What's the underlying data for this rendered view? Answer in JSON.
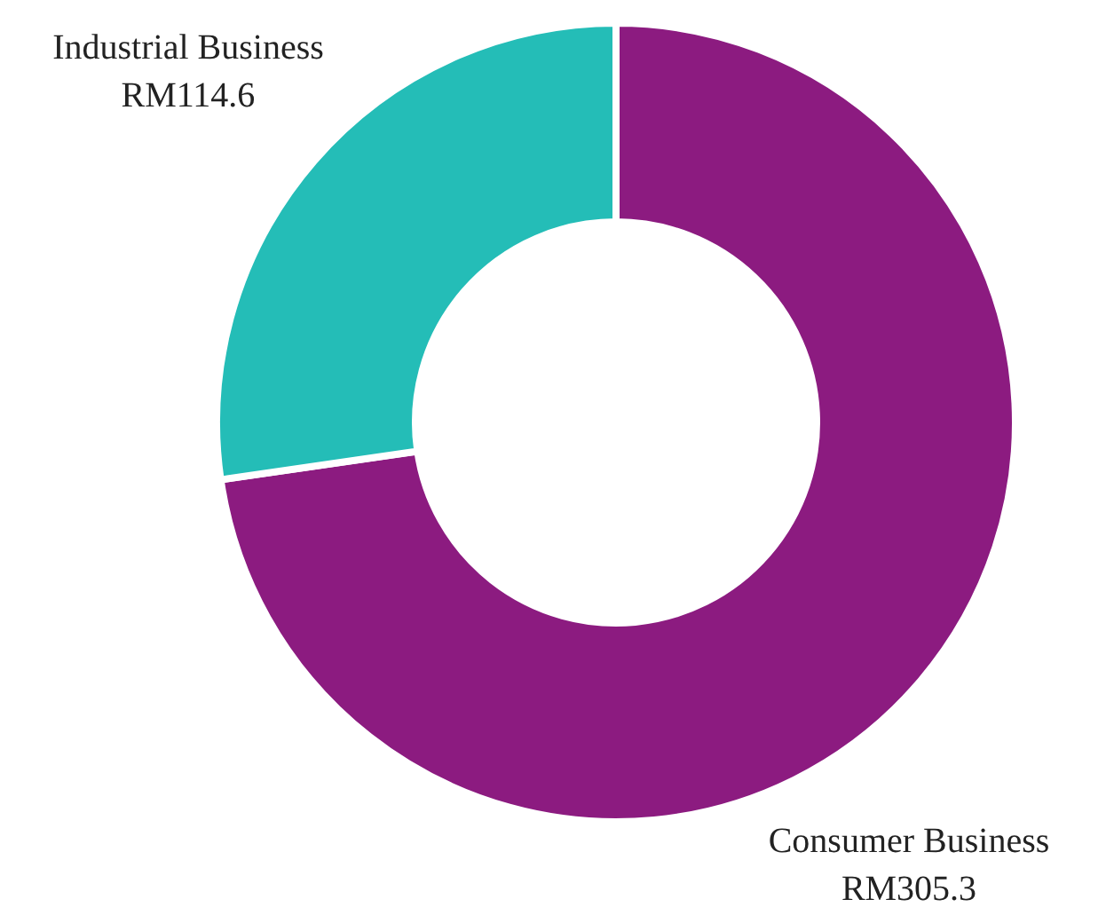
{
  "chart_data": {
    "type": "donut",
    "categories": [
      "Consumer Business",
      "Industrial Business"
    ],
    "values": [
      305.3,
      114.6
    ],
    "colors": [
      "#8c1b80",
      "#24bdb7"
    ],
    "value_labels": [
      "RM305.3",
      "RM114.6"
    ]
  }
}
